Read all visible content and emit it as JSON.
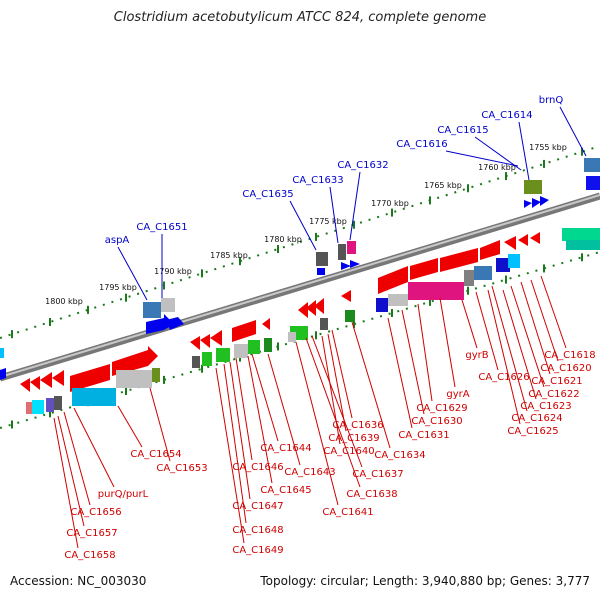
{
  "title": "Clostridium acetobutylicum ATCC 824, complete genome",
  "accession": "Accession: NC_003030",
  "topology": "Topology: circular; Length: 3,940,880 bp; Genes: 3,777",
  "colors": {
    "forward_label": "#0000cc",
    "reverse_label": "#d00000",
    "backbone": "#8a8a8a",
    "ticks": "#1a7a1a",
    "forward_arrow": "#0000ee",
    "reverse_arrow": "#ee0000"
  },
  "kbp_labels": [
    "1755 kbp",
    "1760 kbp",
    "1765 kbp",
    "1770 kbp",
    "1775 kbp",
    "1780 kbp",
    "1785 kbp",
    "1790 kbp",
    "1795 kbp",
    "1800 kbp"
  ],
  "top_genes": [
    "brnQ",
    "CA_C1614",
    "CA_C1615",
    "CA_C1616",
    "CA_C1632",
    "CA_C1633",
    "CA_C1635",
    "CA_C1651",
    "aspA"
  ],
  "bottom_genes": [
    "CA_C1618",
    "CA_C1620",
    "CA_C1621",
    "CA_C1622",
    "CA_C1623",
    "CA_C1624",
    "CA_C1625",
    "CA_C1626",
    "gyrB",
    "gyrA",
    "CA_C1629",
    "CA_C1630",
    "CA_C1631",
    "CA_C1634",
    "CA_C1636",
    "CA_C1639",
    "CA_C1640",
    "CA_C1637",
    "CA_C1638",
    "CA_C1641",
    "CA_C1643",
    "CA_C1644",
    "CA_C1645",
    "CA_C1646",
    "CA_C1647",
    "CA_C1648",
    "CA_C1649",
    "CA_C1654",
    "CA_C1653",
    "purQ/purL",
    "CA_C1656",
    "CA_C1657",
    "CA_C1658"
  ]
}
